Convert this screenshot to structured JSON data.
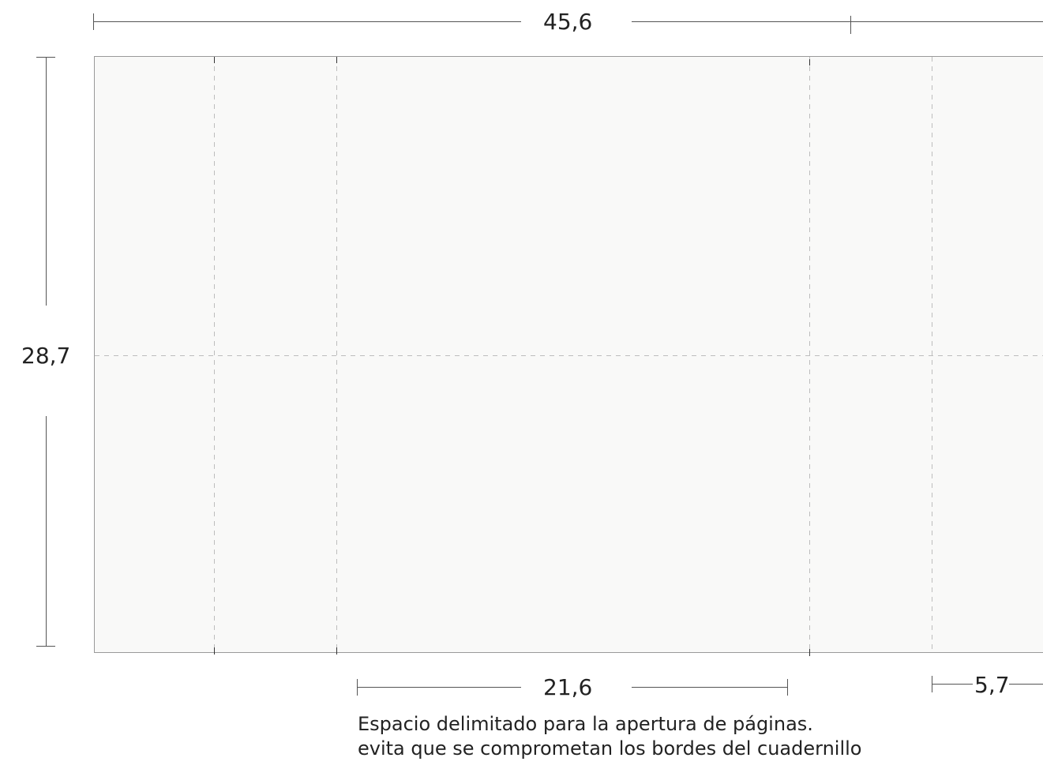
{
  "colors": {
    "sheet_fill": "#f9f9f8",
    "sheet_border": "#9a9a9a",
    "fold_line": "#bdbdbd",
    "dimension_line": "#555555",
    "text": "#222222"
  },
  "dimensions": {
    "total_width": "45,6",
    "total_height": "28,7",
    "spread_width": "21,6",
    "flap_width": "5,7"
  },
  "caption": {
    "line1": "Espacio delimitado para la apertura de páginas.",
    "line2": "evita que se comprometan los bordes del cuadernillo"
  }
}
